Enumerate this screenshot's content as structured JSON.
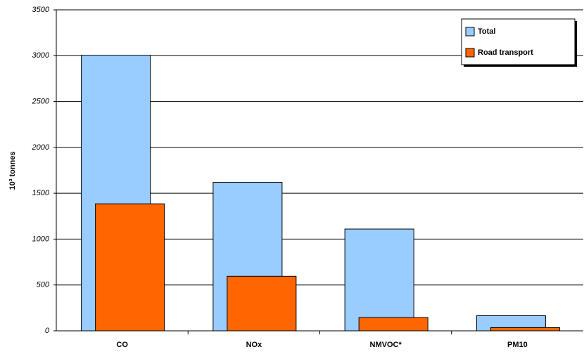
{
  "chart_data": {
    "type": "bar",
    "y_label": "10³ tonnes",
    "categories": [
      "CO",
      "NOx",
      "NMVOC*",
      "PM10"
    ],
    "series": [
      {
        "name": "Total",
        "color": "#99ccff",
        "values": [
          3005,
          1620,
          1110,
          165
        ]
      },
      {
        "name": "Road transport",
        "color": "#ff6600",
        "values": [
          1385,
          595,
          145,
          35
        ]
      }
    ],
    "ylim": [
      0,
      3500
    ],
    "yticks": [
      0,
      500,
      1000,
      1500,
      2000,
      2500,
      3000,
      3500
    ],
    "grid": true,
    "legend": "top-right"
  }
}
